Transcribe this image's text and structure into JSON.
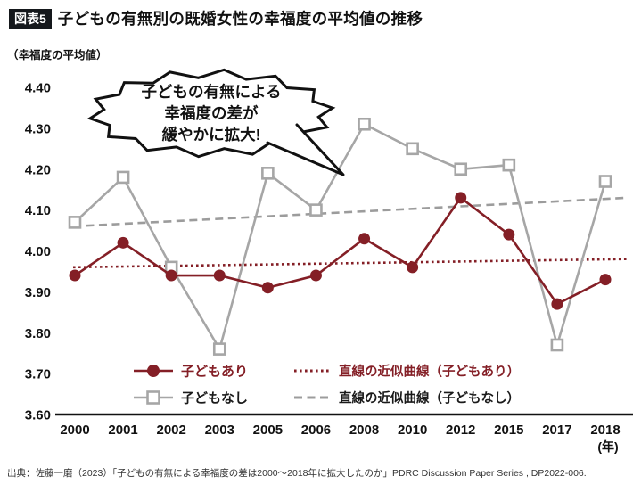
{
  "header": {
    "badge": "図表5",
    "title": "子どもの有無別の既婚女性の幸福度の平均値の推移"
  },
  "axis_unit_label": "（幸福度の平均値）",
  "annotation": {
    "lines": [
      "子どもの有無による",
      "幸福度の差が",
      "緩やかに拡大!"
    ]
  },
  "chart_data": {
    "type": "line",
    "title": "子どもの有無別の既婚女性の幸福度の平均値の推移",
    "categories": [
      "2000",
      "2001",
      "2002",
      "2003",
      "2005",
      "2006",
      "2008",
      "2010",
      "2012",
      "2015",
      "2017",
      "2018"
    ],
    "x_unit": "(年)",
    "ylabel": "幸福度の平均値",
    "ylim": [
      3.6,
      4.4
    ],
    "yticks": [
      "4.40",
      "4.30",
      "4.20",
      "4.10",
      "4.00",
      "3.90",
      "3.80",
      "3.70",
      "3.60"
    ],
    "grid": false,
    "legend_position": "bottom-inside",
    "series": [
      {
        "name": "子どもあり",
        "marker": "circle",
        "color": "#841f26",
        "label_color": "#841f26",
        "values": [
          3.94,
          4.02,
          3.94,
          3.94,
          3.91,
          3.94,
          4.03,
          3.96,
          4.13,
          4.04,
          3.87,
          3.93
        ]
      },
      {
        "name": "子どもなし",
        "marker": "square",
        "color": "#a6a6a6",
        "label_color": "#1a1a1a",
        "values": [
          4.07,
          4.18,
          3.96,
          3.76,
          4.19,
          4.1,
          4.31,
          4.25,
          4.2,
          4.21,
          3.77,
          4.17
        ]
      }
    ],
    "trendlines": [
      {
        "name": "直線の近似曲線（子どもあり）",
        "style": "dotted",
        "color": "#841f26",
        "label_color": "#841f26",
        "start": 3.96,
        "end": 3.98
      },
      {
        "name": "直線の近似曲線（子どもなし）",
        "style": "dashed",
        "color": "#9c9c9c",
        "label_color": "#1a1a1a",
        "start": 4.06,
        "end": 4.13
      }
    ]
  },
  "source": "出典：佐藤一磨（2023）「子どもの有無による幸福度の差は2000〜2018年に拡大したのか」PDRC Discussion Paper Series , DP2022-006."
}
